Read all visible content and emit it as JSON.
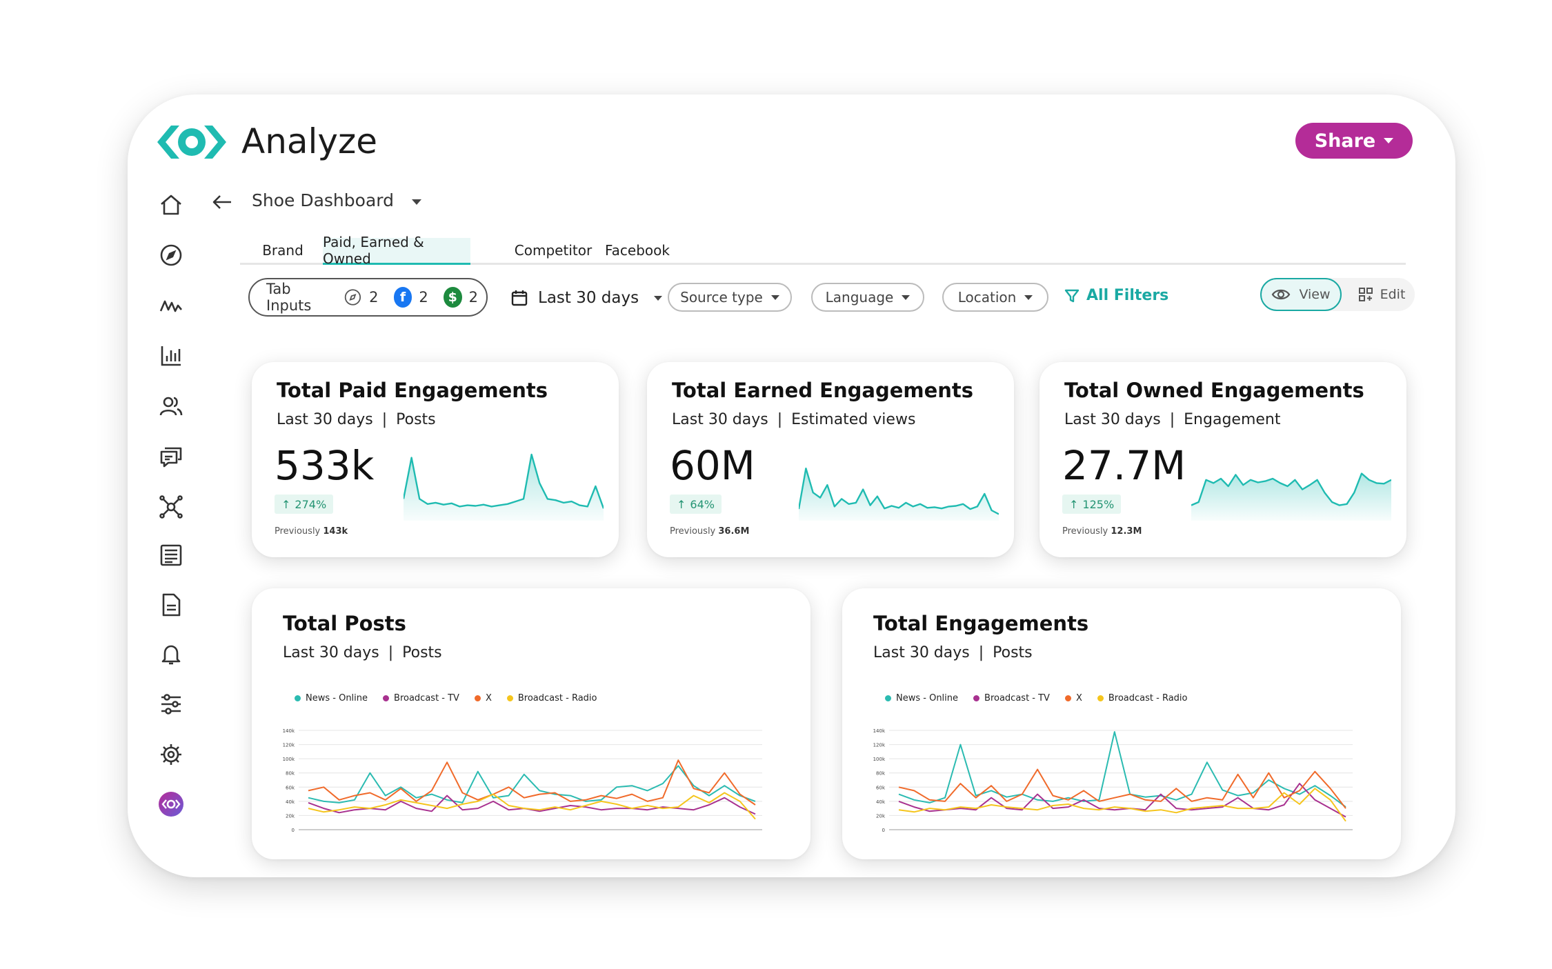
{
  "app": {
    "title": "Analyze",
    "share_label": "Share"
  },
  "colors": {
    "teal": "#1fbbb1",
    "share": "#b42c98",
    "news_online": "#2bbbb1",
    "broadcast_tv": "#a8318f",
    "x": "#f06a2a",
    "broadcast_radio": "#f5c51d"
  },
  "sidebar": {
    "items": [
      {
        "icon": "home-icon"
      },
      {
        "icon": "compass-icon"
      },
      {
        "icon": "trend-icon"
      },
      {
        "icon": "bar-chart-icon"
      },
      {
        "icon": "users-icon"
      },
      {
        "icon": "chat-icon"
      },
      {
        "icon": "network-icon"
      },
      {
        "icon": "news-icon"
      },
      {
        "icon": "document-icon"
      },
      {
        "icon": "bell-icon"
      },
      {
        "icon": "sliders-icon"
      },
      {
        "icon": "settings-icon"
      },
      {
        "icon": "brand-eye-icon"
      }
    ]
  },
  "dashboard": {
    "title": "Shoe Dashboard"
  },
  "tabs": [
    {
      "label": "Brand"
    },
    {
      "label": "Paid, Earned & Owned"
    },
    {
      "label": "Competitor"
    },
    {
      "label": "Facebook"
    }
  ],
  "filters": {
    "tab_inputs_label": "Tab Inputs",
    "tab_inputs_counts": {
      "compass": "2",
      "facebook": "2",
      "dollar": "2"
    },
    "date_range": "Last 30 days",
    "source_type": "Source type",
    "language": "Language",
    "location": "Location",
    "all_filters": "All Filters",
    "view_label": "View",
    "edit_label": "Edit"
  },
  "kpis": [
    {
      "title": "Total Paid Engagements",
      "period": "Last 30 days",
      "sep": "|",
      "metric": "Posts",
      "value": "533k",
      "delta": "274%",
      "prev_label": "Previously",
      "prev_value": "143k"
    },
    {
      "title": "Total Earned Engagements",
      "period": "Last 30 days",
      "sep": "|",
      "metric": "Estimated views",
      "value": "60M",
      "delta": "64%",
      "prev_label": "Previously",
      "prev_value": "36.6M"
    },
    {
      "title": "Total Owned Engagements",
      "period": "Last 30 days",
      "sep": "|",
      "metric": "Engagement",
      "value": "27.7M",
      "delta": "125%",
      "prev_label": "Previously",
      "prev_value": "12.3M"
    }
  ],
  "sparklines": [
    [
      30,
      95,
      30,
      22,
      24,
      21,
      23,
      18,
      20,
      19,
      21,
      18,
      20,
      22,
      26,
      30,
      100,
      55,
      30,
      28,
      24,
      26,
      20,
      18,
      50,
      15
    ],
    [
      14,
      78,
      40,
      32,
      52,
      18,
      30,
      22,
      24,
      45,
      20,
      34,
      15,
      19,
      16,
      24,
      18,
      22,
      16,
      17,
      15,
      18,
      19,
      22,
      14,
      18,
      38,
      12,
      6
    ],
    [
      20,
      25,
      60,
      55,
      62,
      50,
      68,
      52,
      60,
      56,
      58,
      62,
      55,
      50,
      60,
      45,
      52,
      60,
      40,
      25,
      20,
      22,
      40,
      70,
      60,
      55,
      54,
      60
    ]
  ],
  "chart_data": [
    {
      "type": "line",
      "title": "Total Posts",
      "subtitle_period": "Last 30 days",
      "subtitle_metric": "Posts",
      "y_ticks": [
        "0",
        "20k",
        "40k",
        "60k",
        "80k",
        "100k",
        "120k",
        "140k"
      ],
      "ylim": [
        0,
        140000
      ],
      "x": [
        1,
        2,
        3,
        4,
        5,
        6,
        7,
        8,
        9,
        10,
        11,
        12,
        13,
        14,
        15,
        16,
        17,
        18,
        19,
        20,
        21,
        22,
        23,
        24,
        25,
        26,
        27,
        28,
        29,
        30
      ],
      "series": [
        {
          "name": "News - Online",
          "color": "#2bbbb1",
          "values": [
            45000,
            40000,
            38000,
            42000,
            80000,
            48000,
            60000,
            45000,
            50000,
            42000,
            38000,
            82000,
            45000,
            48000,
            78000,
            55000,
            50000,
            48000,
            40000,
            42000,
            60000,
            62000,
            55000,
            65000,
            90000,
            62000,
            48000,
            62000,
            48000,
            40000
          ]
        },
        {
          "name": "Broadcast - TV",
          "color": "#a8318f",
          "values": [
            38000,
            30000,
            24000,
            28000,
            30000,
            28000,
            40000,
            30000,
            26000,
            48000,
            28000,
            30000,
            40000,
            28000,
            30000,
            26000,
            30000,
            34000,
            32000,
            28000,
            30000,
            30000,
            28000,
            32000,
            30000,
            28000,
            35000,
            45000,
            32000,
            22000
          ]
        },
        {
          "name": "X",
          "color": "#f06a2a",
          "values": [
            55000,
            60000,
            42000,
            48000,
            52000,
            42000,
            58000,
            40000,
            55000,
            95000,
            52000,
            42000,
            50000,
            60000,
            45000,
            50000,
            52000,
            40000,
            42000,
            48000,
            44000,
            50000,
            40000,
            45000,
            98000,
            58000,
            52000,
            80000,
            50000,
            35000
          ]
        },
        {
          "name": "Broadcast - Radio",
          "color": "#f5c51d",
          "values": [
            30000,
            25000,
            28000,
            32000,
            30000,
            35000,
            42000,
            38000,
            34000,
            30000,
            36000,
            40000,
            50000,
            34000,
            30000,
            28000,
            32000,
            28000,
            34000,
            40000,
            36000,
            30000,
            34000,
            30000,
            32000,
            48000,
            38000,
            52000,
            40000,
            15000
          ]
        }
      ]
    },
    {
      "type": "line",
      "title": "Total Engagements",
      "subtitle_period": "Last 30 days",
      "subtitle_metric": "Posts",
      "y_ticks": [
        "0",
        "20k",
        "40k",
        "60k",
        "80k",
        "100k",
        "120k",
        "140k"
      ],
      "ylim": [
        0,
        140000
      ],
      "x": [
        1,
        2,
        3,
        4,
        5,
        6,
        7,
        8,
        9,
        10,
        11,
        12,
        13,
        14,
        15,
        16,
        17,
        18,
        19,
        20,
        21,
        22,
        23,
        24,
        25,
        26,
        27,
        28,
        29,
        30
      ],
      "series": [
        {
          "name": "News - Online",
          "color": "#2bbbb1",
          "values": [
            50000,
            42000,
            38000,
            45000,
            120000,
            48000,
            55000,
            46000,
            50000,
            42000,
            40000,
            45000,
            40000,
            42000,
            138000,
            50000,
            46000,
            48000,
            42000,
            50000,
            95000,
            56000,
            48000,
            52000,
            70000,
            58000,
            50000,
            62000,
            48000,
            32000
          ]
        },
        {
          "name": "Broadcast - TV",
          "color": "#a8318f",
          "values": [
            40000,
            32000,
            26000,
            28000,
            30000,
            28000,
            45000,
            30000,
            28000,
            50000,
            30000,
            32000,
            42000,
            30000,
            28000,
            30000,
            28000,
            50000,
            30000,
            28000,
            30000,
            32000,
            45000,
            30000,
            28000,
            35000,
            65000,
            42000,
            30000,
            18000
          ]
        },
        {
          "name": "X",
          "color": "#f06a2a",
          "values": [
            60000,
            55000,
            42000,
            40000,
            65000,
            45000,
            62000,
            40000,
            50000,
            85000,
            48000,
            42000,
            55000,
            40000,
            45000,
            50000,
            42000,
            40000,
            58000,
            40000,
            45000,
            42000,
            78000,
            45000,
            80000,
            45000,
            55000,
            82000,
            58000,
            30000
          ]
        },
        {
          "name": "Broadcast - Radio",
          "color": "#f5c51d",
          "values": [
            28000,
            25000,
            30000,
            28000,
            32000,
            30000,
            35000,
            32000,
            30000,
            28000,
            34000,
            36000,
            30000,
            28000,
            32000,
            30000,
            26000,
            28000,
            24000,
            30000,
            32000,
            34000,
            30000,
            30000,
            32000,
            52000,
            36000,
            58000,
            42000,
            12000
          ]
        }
      ]
    }
  ]
}
